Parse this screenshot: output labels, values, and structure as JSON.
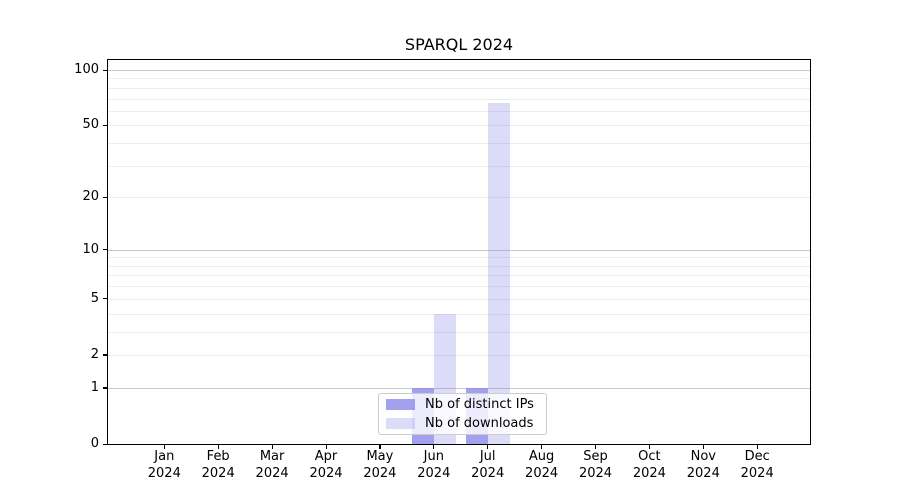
{
  "chart_data": {
    "type": "bar",
    "title": "SPARQL 2024",
    "categories": [
      {
        "month": "Jan",
        "year": "2024"
      },
      {
        "month": "Feb",
        "year": "2024"
      },
      {
        "month": "Mar",
        "year": "2024"
      },
      {
        "month": "Apr",
        "year": "2024"
      },
      {
        "month": "May",
        "year": "2024"
      },
      {
        "month": "Jun",
        "year": "2024"
      },
      {
        "month": "Jul",
        "year": "2024"
      },
      {
        "month": "Aug",
        "year": "2024"
      },
      {
        "month": "Sep",
        "year": "2024"
      },
      {
        "month": "Oct",
        "year": "2024"
      },
      {
        "month": "Nov",
        "year": "2024"
      },
      {
        "month": "Dec",
        "year": "2024"
      }
    ],
    "series": [
      {
        "name": "Nb of distinct IPs",
        "color": "rgba(138,138,232,0.8)",
        "values": [
          0,
          0,
          0,
          0,
          0,
          1,
          1,
          0,
          0,
          0,
          0,
          0
        ]
      },
      {
        "name": "Nb of downloads",
        "color": "rgba(138,138,232,0.3)",
        "values": [
          0,
          0,
          0,
          0,
          0,
          4,
          66,
          0,
          0,
          0,
          0,
          0
        ]
      }
    ],
    "y_axis": {
      "scale": "log1p",
      "ticks": [
        0,
        1,
        2,
        5,
        10,
        20,
        50,
        100
      ],
      "grid_minor": [
        2,
        3,
        4,
        5,
        6,
        7,
        8,
        9,
        20,
        30,
        40,
        50,
        60,
        70,
        80,
        90
      ],
      "grid_major": [
        1,
        10,
        100
      ],
      "range": [
        0,
        115
      ]
    },
    "legend": {
      "position": "lower-center",
      "frame": true
    }
  }
}
